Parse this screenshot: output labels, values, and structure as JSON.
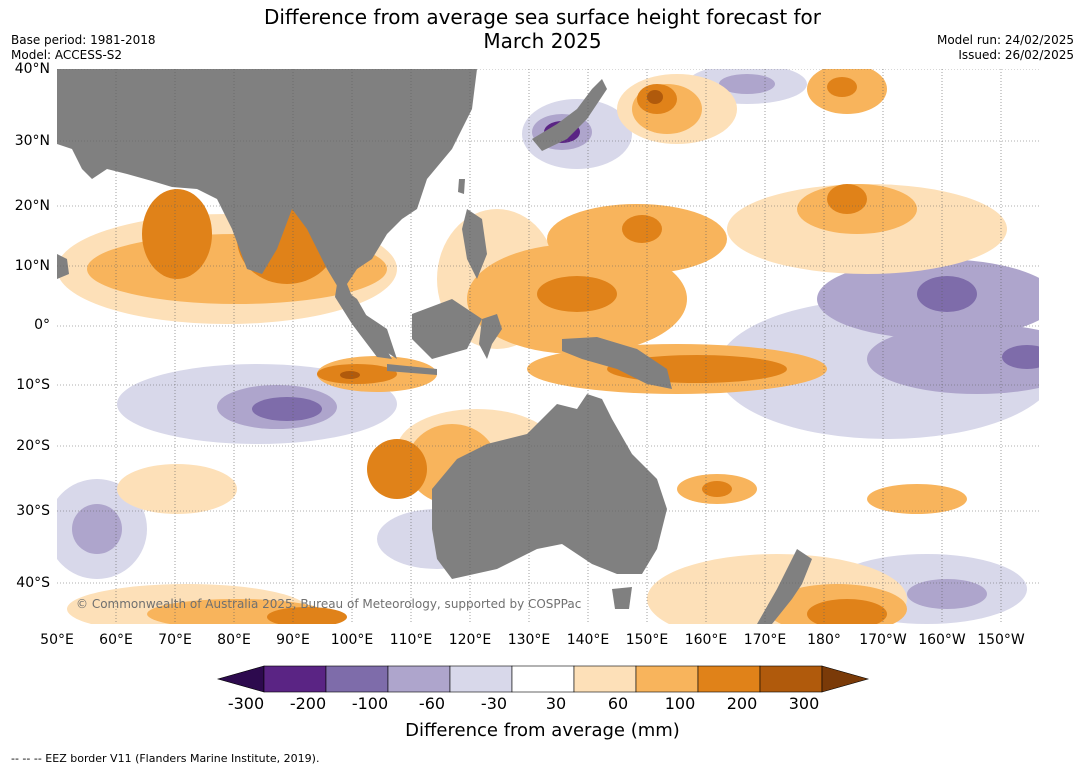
{
  "title": {
    "line1": "Difference from average sea surface height forecast for",
    "line2": "March 2025"
  },
  "meta": {
    "base_period": "Base period: 1981-2018",
    "model": "Model: ACCESS-S2",
    "model_run": "Model run: 24/02/2025",
    "issued": "Issued: 26/02/2025"
  },
  "axes": {
    "lat_labels": [
      "40°N",
      "30°N",
      "20°N",
      "10°N",
      "0°",
      "10°S",
      "20°S",
      "30°S",
      "40°S"
    ],
    "lon_labels": [
      "50°E",
      "60°E",
      "70°E",
      "80°E",
      "90°E",
      "100°E",
      "110°E",
      "120°E",
      "130°E",
      "140°E",
      "150°E",
      "160°E",
      "170°E",
      "180°",
      "170°W",
      "160°W",
      "150°W"
    ]
  },
  "copyright": "© Commonwealth of Australia 2025, Bureau of Meteorology, supported by COSPPac",
  "colorbar": {
    "ticks": [
      "-300",
      "-200",
      "-100",
      "-60",
      "-30",
      "30",
      "60",
      "100",
      "200",
      "300"
    ],
    "colors": [
      "#2d0a4e",
      "#5a2484",
      "#7e6caa",
      "#aea5cc",
      "#d8d8ea",
      "#ffffff",
      "#fde0b8",
      "#f8b45c",
      "#e08219",
      "#b05a0c",
      "#7a3a08"
    ],
    "label": "Difference from average (mm)"
  },
  "footnote": "--  --  -- EEZ border V11 (Flanders Marine Institute, 2019).",
  "colors": {
    "land": "#808080",
    "grid": "#606060"
  }
}
